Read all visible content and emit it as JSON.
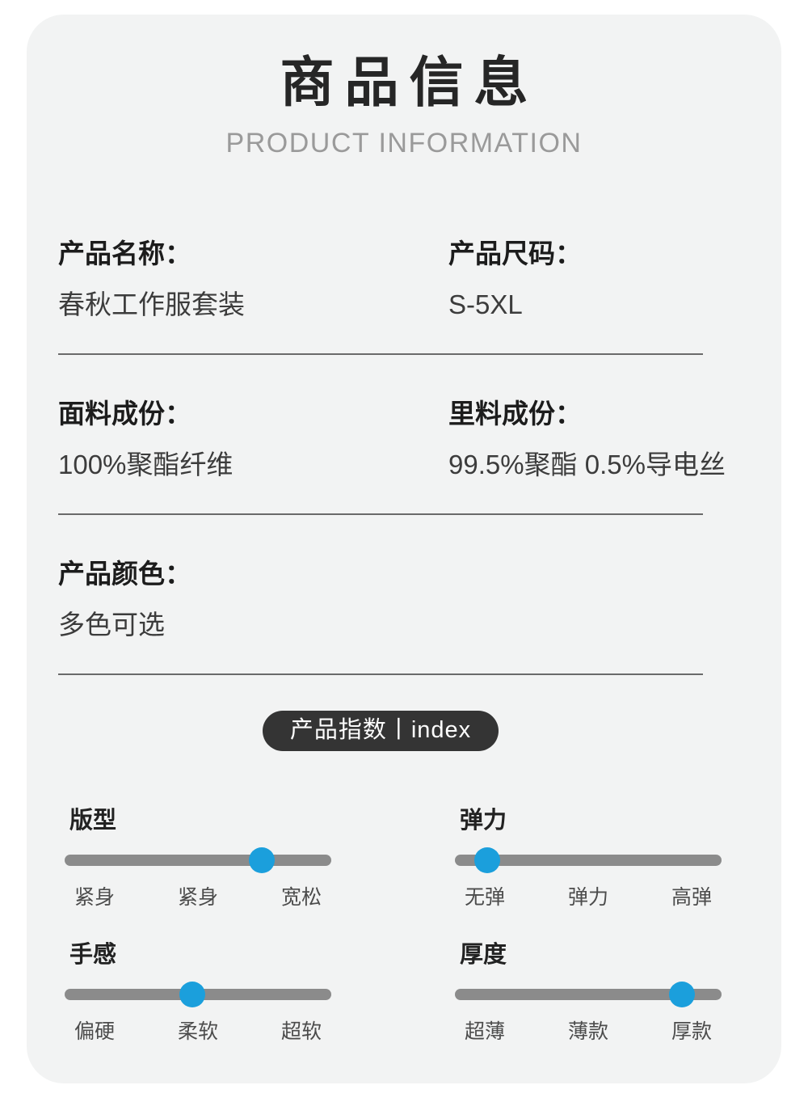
{
  "header": {
    "title": "商品信息",
    "subtitle": "PRODUCT INFORMATION"
  },
  "info_rows": [
    {
      "columns": [
        {
          "label": "产品名称：",
          "value": "春秋工作服套装"
        },
        {
          "label": "产品尺码：",
          "value": "S-5XL"
        }
      ]
    },
    {
      "columns": [
        {
          "label": "面料成份：",
          "value": "100%聚酯纤维"
        },
        {
          "label": "里料成份：",
          "value": "99.5%聚酯 0.5%导电丝"
        }
      ]
    },
    {
      "columns": [
        {
          "label": "产品颜色：",
          "value": "多色可选"
        }
      ]
    }
  ],
  "index_badge": {
    "label": "产品指数丨index"
  },
  "sliders": [
    {
      "title": "版型",
      "value_percent": 74,
      "labels": [
        "紧身",
        "紧身",
        "宽松"
      ]
    },
    {
      "title": "弹力",
      "value_percent": 12,
      "labels": [
        "无弹",
        "弹力",
        "高弹"
      ]
    },
    {
      "title": "手感",
      "value_percent": 48,
      "labels": [
        "偏硬",
        "柔软",
        "超软"
      ]
    },
    {
      "title": "厚度",
      "value_percent": 85,
      "labels": [
        "超薄",
        "薄款",
        "厚款"
      ]
    }
  ],
  "colors": {
    "accent_blue": "#1b9fdc",
    "track_gray": "#8b8b8b",
    "badge_bg": "#343434",
    "card_bg": "#f2f3f3"
  }
}
